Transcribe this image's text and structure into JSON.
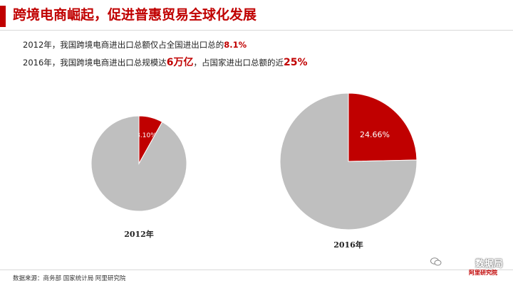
{
  "header": {
    "title": "跨境电商崛起，促进普惠贸易全球化发展",
    "accent_color": "#c00000"
  },
  "summary": {
    "line1_text": "2012年，我国跨境电商进出口总额仅占全国进出口总的",
    "line1_value": "8.1%",
    "line2_text_a": "2016年，我国跨境电商进出口总规模达",
    "line2_value_a": "6万亿",
    "line2_text_b": "，占国家进出口总额的近",
    "line2_value_b": "25%"
  },
  "chart_data": [
    {
      "type": "pie",
      "year_label": "2012年",
      "slices": [
        {
          "value": 8.1,
          "label": "8.10%",
          "color": "#c00000"
        },
        {
          "value": 91.9,
          "label": "",
          "color": "#bfbfbf"
        }
      ]
    },
    {
      "type": "pie",
      "year_label": "2016年",
      "slices": [
        {
          "value": 24.66,
          "label": "24.66%",
          "color": "#c00000"
        },
        {
          "value": 75.34,
          "label": "",
          "color": "#bfbfbf"
        }
      ]
    }
  ],
  "footer": {
    "source": "数据来源：商务部 国家统计局 阿里研究院"
  },
  "watermark": {
    "icon": "wechat-icon",
    "text": "数据局",
    "sub": "阿里研究院"
  }
}
